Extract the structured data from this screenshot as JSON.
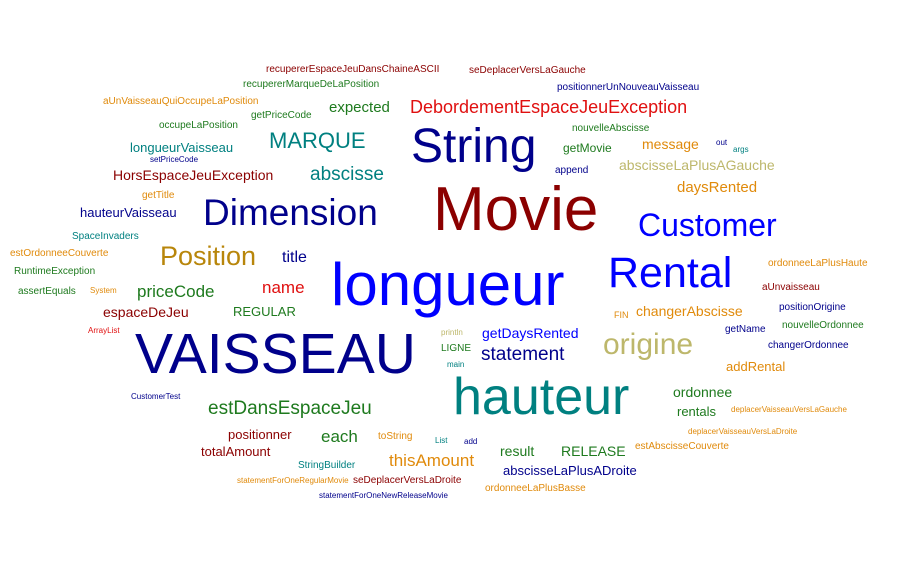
{
  "words": [
    {
      "text": "recupererEspaceJeuDansChaineASCII",
      "color": "#8b0000"
    },
    {
      "text": "seDeplacerVersLaGauche",
      "color": "#8b0000"
    },
    {
      "text": "recupererMarqueDeLaPosition",
      "color": "#1e7a1e"
    },
    {
      "text": "positionnerUnNouveauVaisseau",
      "color": "#00008b"
    },
    {
      "text": "aUnVaisseauQuiOccupeLaPosition",
      "color": "#e08a0b"
    },
    {
      "text": "expected",
      "color": "#1e7a1e"
    },
    {
      "text": "DebordementEspaceJeuException",
      "color": "#e01010"
    },
    {
      "text": "getPriceCode",
      "color": "#1e7a1e"
    },
    {
      "text": "occupeLaPosition",
      "color": "#1e7a1e"
    },
    {
      "text": "nouvelleAbscisse",
      "color": "#1e7a1e"
    },
    {
      "text": "MARQUE",
      "color": "#008080"
    },
    {
      "text": "String",
      "color": "#00008b"
    },
    {
      "text": "message",
      "color": "#e08a0b"
    },
    {
      "text": "out",
      "color": "#00008b"
    },
    {
      "text": "getMovie",
      "color": "#1e7a1e"
    },
    {
      "text": "args",
      "color": "#008080"
    },
    {
      "text": "longueurVaisseau",
      "color": "#008080"
    },
    {
      "text": "setPriceCode",
      "color": "#00008b"
    },
    {
      "text": "abscisseLaPlusAGauche",
      "color": "#bdb76b"
    },
    {
      "text": "append",
      "color": "#00008b"
    },
    {
      "text": "HorsEspaceJeuException",
      "color": "#8b0000"
    },
    {
      "text": "abscisse",
      "color": "#008080"
    },
    {
      "text": "getTitle",
      "color": "#e08a0b"
    },
    {
      "text": "daysRented",
      "color": "#e08a0b"
    },
    {
      "text": "hauteurVaisseau",
      "color": "#00008b"
    },
    {
      "text": "Dimension",
      "color": "#00008b"
    },
    {
      "text": "Movie",
      "color": "#8b0000"
    },
    {
      "text": "Customer",
      "color": "#0000ff"
    },
    {
      "text": "SpaceInvaders",
      "color": "#008080"
    },
    {
      "text": "estOrdonneeCouverte",
      "color": "#e08a0b"
    },
    {
      "text": "Position",
      "color": "#b8860b"
    },
    {
      "text": "title",
      "color": "#00008b"
    },
    {
      "text": "longueur",
      "color": "#0000ff"
    },
    {
      "text": "Rental",
      "color": "#0000ff"
    },
    {
      "text": "ordonneeLaPlusHaute",
      "color": "#e08a0b"
    },
    {
      "text": "RuntimeException",
      "color": "#1e7a1e"
    },
    {
      "text": "name",
      "color": "#e01010"
    },
    {
      "text": "aUnvaisseau",
      "color": "#8b0000"
    },
    {
      "text": "assertEquals",
      "color": "#1e7a1e"
    },
    {
      "text": "System",
      "color": "#e08a0b"
    },
    {
      "text": "priceCode",
      "color": "#1e7a1e"
    },
    {
      "text": "positionOrigine",
      "color": "#00008b"
    },
    {
      "text": "espaceDeJeu",
      "color": "#8b0000"
    },
    {
      "text": "REGULAR",
      "color": "#1e7a1e"
    },
    {
      "text": "FIN",
      "color": "#e08a0b"
    },
    {
      "text": "changerAbscisse",
      "color": "#e08a0b"
    },
    {
      "text": "nouvelleOrdonnee",
      "color": "#1e7a1e"
    },
    {
      "text": "ArrayList",
      "color": "#e01010"
    },
    {
      "text": "getName",
      "color": "#00008b"
    },
    {
      "text": "println",
      "color": "#bdb76b"
    },
    {
      "text": "getDaysRented",
      "color": "#0000ff"
    },
    {
      "text": "origine",
      "color": "#bdb76b"
    },
    {
      "text": "changerOrdonnee",
      "color": "#00008b"
    },
    {
      "text": "VAISSEAU",
      "color": "#00008b"
    },
    {
      "text": "LIGNE",
      "color": "#1e7a1e"
    },
    {
      "text": "statement",
      "color": "#00008b"
    },
    {
      "text": "main",
      "color": "#008080"
    },
    {
      "text": "addRental",
      "color": "#e08a0b"
    },
    {
      "text": "ordonnee",
      "color": "#1e7a1e"
    },
    {
      "text": "hauteur",
      "color": "#008080"
    },
    {
      "text": "CustomerTest",
      "color": "#00008b"
    },
    {
      "text": "estDansEspaceJeu",
      "color": "#1e7a1e"
    },
    {
      "text": "rentals",
      "color": "#1e7a1e"
    },
    {
      "text": "deplacerVaisseauVersLaGauche",
      "color": "#e08a0b"
    },
    {
      "text": "positionner",
      "color": "#8b0000"
    },
    {
      "text": "each",
      "color": "#1e7a1e"
    },
    {
      "text": "toString",
      "color": "#e08a0b"
    },
    {
      "text": "List",
      "color": "#008080"
    },
    {
      "text": "add",
      "color": "#00008b"
    },
    {
      "text": "deplacerVaisseauVersLaDroite",
      "color": "#e08a0b"
    },
    {
      "text": "totalAmount",
      "color": "#8b0000"
    },
    {
      "text": "result",
      "color": "#1e7a1e"
    },
    {
      "text": "RELEASE",
      "color": "#1e7a1e"
    },
    {
      "text": "estAbscisseCouverte",
      "color": "#e08a0b"
    },
    {
      "text": "thisAmount",
      "color": "#e08a0b"
    },
    {
      "text": "StringBuilder",
      "color": "#008080"
    },
    {
      "text": "abscisseLaPlusADroite",
      "color": "#00008b"
    },
    {
      "text": "statementForOneRegularMovie",
      "color": "#e08a0b"
    },
    {
      "text": "seDeplacerVersLaDroite",
      "color": "#8b0000"
    },
    {
      "text": "ordonneeLaPlusBasse",
      "color": "#e08a0b"
    },
    {
      "text": "statementForOneNewReleaseMovie",
      "color": "#00008b"
    }
  ]
}
